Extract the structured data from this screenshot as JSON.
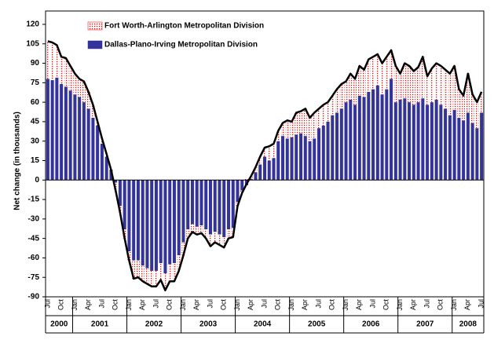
{
  "chart_data": {
    "type": "stacked-bar",
    "y_label": "Net change (in thousands)",
    "categories": [
      "Jul",
      null,
      null,
      "Oct",
      null,
      null,
      "Jan",
      null,
      null,
      "Apr",
      null,
      null,
      "Jul",
      null,
      null,
      "Oct",
      null,
      null,
      "Jan",
      null,
      null,
      "Apr",
      null,
      null,
      "Jul",
      null,
      null,
      "Oct",
      null,
      null,
      "Jan",
      null,
      null,
      "Apr",
      null,
      null,
      "Jul",
      null,
      null,
      "Oct",
      null,
      null,
      "Jan",
      null,
      null,
      "Apr",
      null,
      null,
      "Jul",
      null,
      null,
      "Oct",
      null,
      null,
      "Jan",
      null,
      null,
      "Apr",
      null,
      null,
      "Jul",
      null,
      null,
      "Oct",
      null,
      null,
      "Jan",
      null,
      null,
      "Apr",
      null,
      null,
      "Jul",
      null,
      null,
      "Oct",
      null,
      null,
      "Jan",
      null,
      null,
      "Apr",
      null,
      null,
      "Jul",
      null,
      null,
      "Oct",
      null,
      null,
      "Jan",
      null,
      null,
      "Apr",
      null,
      null,
      "Jul"
    ],
    "years": [
      "2000",
      "2001",
      "2002",
      "2003",
      "2004",
      "2005",
      "2006",
      "2007",
      "2008"
    ],
    "series": [
      {
        "name": "Dallas-Plano-Irving Metropolitan Division",
        "color": "#333399",
        "values": [
          78,
          77,
          79,
          74,
          72,
          69,
          66,
          64,
          60,
          55,
          48,
          42,
          28,
          18,
          8,
          -2,
          -20,
          -38,
          -55,
          -62,
          -62,
          -66,
          -68,
          -70,
          -70,
          -64,
          -72,
          -65,
          -64,
          -58,
          -48,
          -38,
          -34,
          -36,
          -35,
          -38,
          -42,
          -40,
          -42,
          -44,
          -38,
          -37,
          -17,
          -8,
          -4,
          1,
          6,
          12,
          18,
          15,
          17,
          30,
          34,
          32,
          33,
          35,
          36,
          34,
          30,
          32,
          40,
          42,
          45,
          50,
          52,
          55,
          60,
          62,
          58,
          65,
          64,
          68,
          70,
          73,
          66,
          70,
          78,
          60,
          62,
          63,
          60,
          58,
          60,
          63,
          58,
          60,
          62,
          58,
          55,
          50,
          54,
          48,
          46,
          52,
          44,
          40,
          52
        ]
      },
      {
        "name": "Fort Worth-Arlington Metropolitan Division",
        "color": "#ff0000",
        "values": [
          29,
          29,
          25,
          21,
          22,
          19,
          16,
          14,
          16,
          13,
          10,
          3,
          4,
          2,
          0,
          -6,
          -5,
          -7,
          -7,
          -14,
          -13,
          -12,
          -12,
          -12,
          -12,
          -13,
          -13,
          -13,
          -14,
          -12,
          -10,
          -7,
          -6,
          -6,
          -6,
          -7,
          -9,
          -8,
          -8,
          -8,
          -7,
          -7,
          -3,
          -2,
          1,
          2,
          4,
          6,
          7,
          11,
          11,
          8,
          10,
          14,
          12,
          17,
          17,
          21,
          18,
          20,
          15,
          16,
          15,
          15,
          18,
          19,
          16,
          20,
          20,
          23,
          21,
          25,
          25,
          24,
          24,
          25,
          22,
          28,
          20,
          27,
          28,
          26,
          27,
          32,
          22,
          26,
          28,
          30,
          30,
          32,
          34,
          22,
          19,
          30,
          22,
          20,
          16
        ]
      }
    ],
    "line_color": "#000000",
    "ylim": [
      -90,
      120
    ],
    "yticks": [
      -90,
      -75,
      -60,
      -45,
      -30,
      -15,
      0,
      15,
      30,
      45,
      60,
      75,
      90,
      105,
      120
    ]
  }
}
